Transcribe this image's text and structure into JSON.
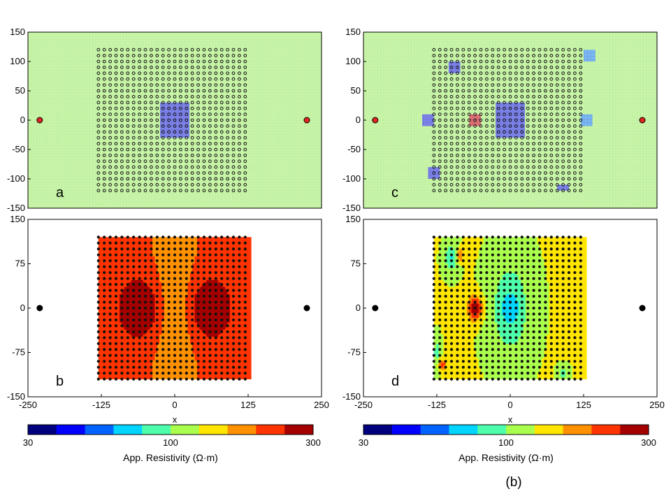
{
  "figure_label": "(b)",
  "colors": {
    "background_model": "#c8f5a8",
    "background_grid": "#b4e496",
    "block_conductive": "#7c82e8",
    "block_light": "#7ab8f2",
    "block_resistive": "#e07070",
    "source_electrode": "#e2261e",
    "receiver_dot": "#111111",
    "colormap": [
      "#00007f",
      "#0000ff",
      "#0063ff",
      "#00d4ff",
      "#4dffaa",
      "#aaff4d",
      "#ffe500",
      "#ff9000",
      "#ff3300",
      "#a50000"
    ]
  },
  "chart_data": [
    {
      "panel": "a",
      "type": "heatmap",
      "title": "",
      "xlim": [
        -250,
        250
      ],
      "ylim": [
        -150,
        150
      ],
      "yticks": [
        "150",
        "100",
        "50",
        "0",
        "-50",
        "-100",
        "-150"
      ],
      "source_electrodes": [
        [
          -230,
          0
        ],
        [
          225,
          0
        ]
      ],
      "receiver_grid": {
        "x_range": [
          -130,
          125
        ],
        "y_range": [
          -120,
          120
        ],
        "spacing": 10
      },
      "blocks": [
        {
          "x": [
            -25,
            25
          ],
          "y": [
            -30,
            30
          ],
          "kind": "conductive"
        }
      ]
    },
    {
      "panel": "b",
      "type": "heatmap",
      "title": "",
      "xlabel": "x",
      "xlim": [
        -250,
        250
      ],
      "ylim": [
        -150,
        150
      ],
      "xticks": [
        "-250",
        "-125",
        "0",
        "125",
        "250"
      ],
      "yticks": [
        "150",
        "75",
        "0",
        "-75",
        "-150"
      ],
      "field": "apparent_resistivity",
      "background_value": 200,
      "anomalies": [
        {
          "x": 0,
          "y": 0,
          "sx": 14,
          "sy": 30,
          "value": 30
        },
        {
          "x": 0,
          "y": 0,
          "sx": 35,
          "sy": 95,
          "value": 160
        },
        {
          "x": -60,
          "y": 0,
          "sx": 28,
          "sy": 40,
          "value": 300
        },
        {
          "x": 60,
          "y": 0,
          "sx": 28,
          "sy": 40,
          "value": 300
        }
      ]
    },
    {
      "panel": "c",
      "type": "heatmap",
      "title": "",
      "xlim": [
        -250,
        250
      ],
      "ylim": [
        -150,
        150
      ],
      "yticks": [
        "150",
        "100",
        "50",
        "0",
        "-50",
        "-100",
        "-150"
      ],
      "source_electrodes": [
        [
          -230,
          0
        ],
        [
          225,
          0
        ]
      ],
      "receiver_grid": {
        "x_range": [
          -130,
          125
        ],
        "y_range": [
          -120,
          120
        ],
        "spacing": 10
      },
      "blocks": [
        {
          "x": [
            -25,
            25
          ],
          "y": [
            -30,
            30
          ],
          "kind": "conductive"
        },
        {
          "x": [
            -105,
            -85
          ],
          "y": [
            80,
            100
          ],
          "kind": "conductive"
        },
        {
          "x": [
            -150,
            -130
          ],
          "y": [
            -10,
            10
          ],
          "kind": "conductive"
        },
        {
          "x": [
            -140,
            -120
          ],
          "y": [
            -100,
            -80
          ],
          "kind": "conductive"
        },
        {
          "x": [
            -70,
            -50
          ],
          "y": [
            -10,
            10
          ],
          "kind": "resistive"
        },
        {
          "x": [
            120,
            140
          ],
          "y": [
            -10,
            10
          ],
          "kind": "light"
        },
        {
          "x": [
            125,
            145
          ],
          "y": [
            100,
            120
          ],
          "kind": "light"
        },
        {
          "x": [
            80,
            100
          ],
          "y": [
            -120,
            -110
          ],
          "kind": "conductive"
        }
      ]
    },
    {
      "panel": "d",
      "type": "heatmap",
      "title": "",
      "xlabel": "x",
      "xlim": [
        -250,
        250
      ],
      "ylim": [
        -150,
        150
      ],
      "xticks": [
        "-250",
        "-125",
        "0",
        "125",
        "250"
      ],
      "yticks": [
        "150",
        "75",
        "0",
        "-75",
        "-150"
      ],
      "field": "apparent_resistivity",
      "background_value": 120,
      "anomalies": [
        {
          "x": 0,
          "y": 0,
          "sx": 9,
          "sy": 16,
          "value": 30
        },
        {
          "x": 0,
          "y": 0,
          "sx": 22,
          "sy": 52,
          "value": 75
        },
        {
          "x": -60,
          "y": 0,
          "sx": 8,
          "sy": 14,
          "value": 300
        },
        {
          "x": -100,
          "y": 85,
          "sx": 8,
          "sy": 16,
          "value": 75
        },
        {
          "x": -125,
          "y": -75,
          "sx": 4,
          "sy": 16,
          "value": 85
        },
        {
          "x": -115,
          "y": -95,
          "sx": 5,
          "sy": 6,
          "value": 220
        },
        {
          "x": 90,
          "y": -110,
          "sx": 6,
          "sy": 8,
          "value": 85
        },
        {
          "x": -85,
          "y": 90,
          "sx": 4,
          "sy": 8,
          "value": 190
        }
      ]
    }
  ],
  "colorbars": [
    {
      "label": "App. Resistivity (Ω·m)",
      "min_label": "30",
      "mid_label": "100",
      "max_label": "300"
    },
    {
      "label": "App. Resistivity (Ω·m)",
      "min_label": "30",
      "mid_label": "100",
      "max_label": "300"
    }
  ]
}
